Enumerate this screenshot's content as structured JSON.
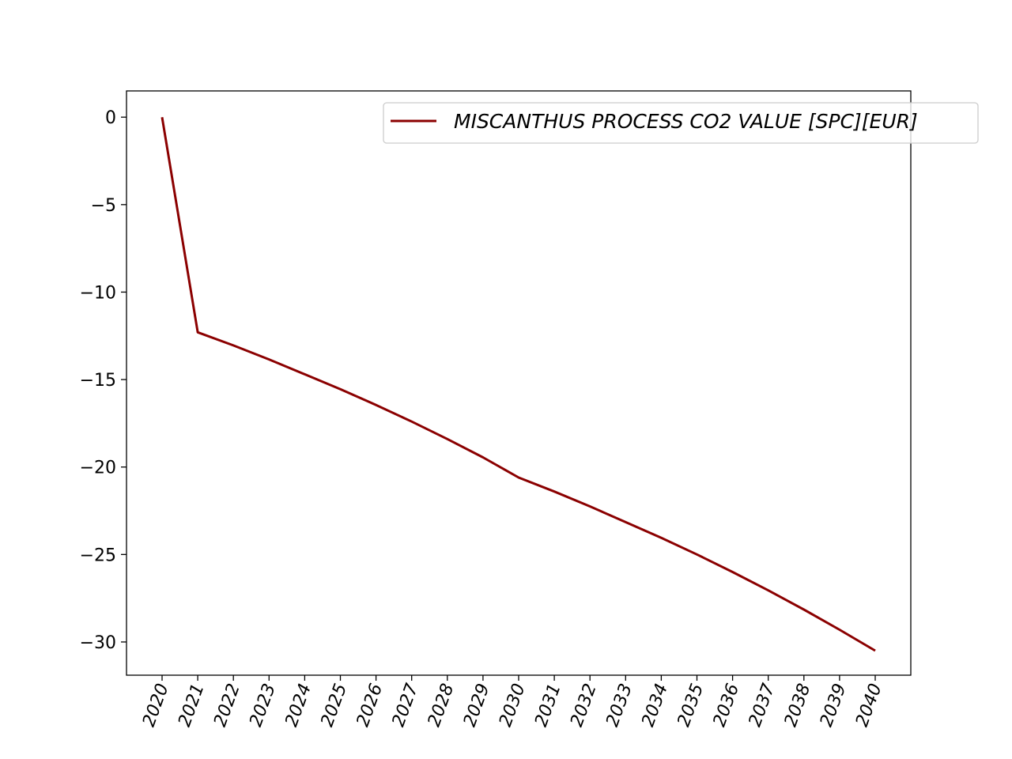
{
  "chart_data": {
    "type": "line",
    "title": "",
    "xlabel": "",
    "ylabel": "",
    "x": [
      "2020",
      "2021",
      "2022",
      "2023",
      "2024",
      "2025",
      "2026",
      "2027",
      "2028",
      "2029",
      "2030",
      "2031",
      "2032",
      "2033",
      "2034",
      "2035",
      "2036",
      "2037",
      "2038",
      "2039",
      "2040"
    ],
    "yticks": [
      0,
      -5,
      -10,
      -15,
      -20,
      -25,
      -30
    ],
    "ylim": [
      -31.9,
      1.5
    ],
    "grid": false,
    "legend_position": "top-right",
    "series": [
      {
        "name": "MISCANTHUS PROCESS CO2 VALUE [SPC][EUR]",
        "color": "#8b0000",
        "values": [
          0.0,
          -12.3,
          -13.05,
          -13.85,
          -14.7,
          -15.55,
          -16.45,
          -17.4,
          -18.4,
          -19.45,
          -20.6,
          -21.4,
          -22.25,
          -23.15,
          -24.05,
          -25.0,
          -26.0,
          -27.05,
          -28.15,
          -29.3,
          -30.5
        ]
      }
    ]
  }
}
